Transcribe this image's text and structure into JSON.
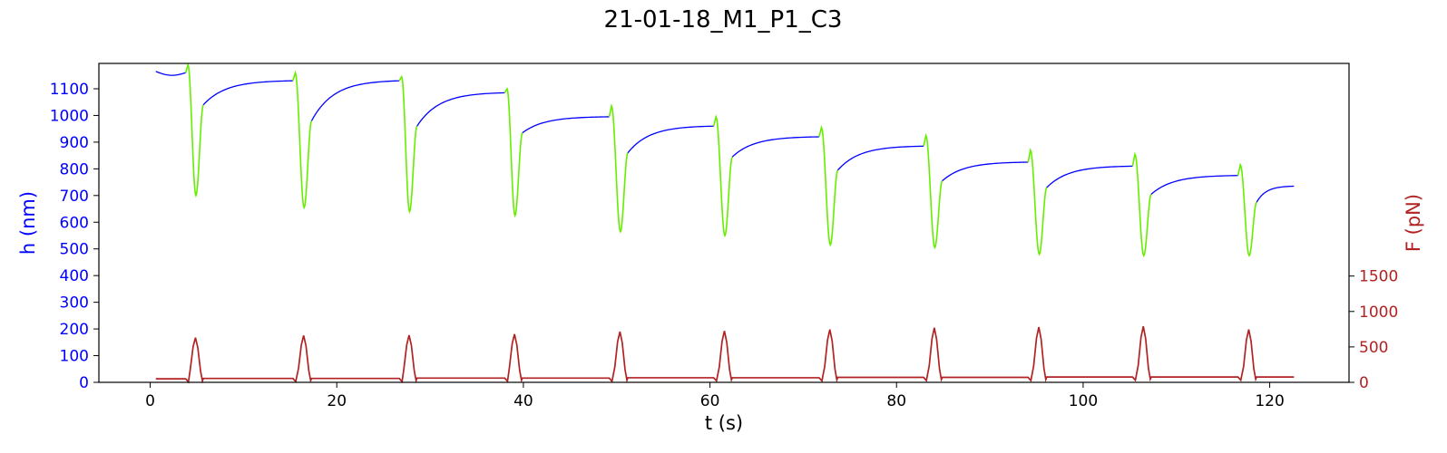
{
  "chart_data": {
    "type": "line",
    "title": "21-01-18_M1_P1_C3",
    "xlabel": "t (s)",
    "ylabel_left": "h (nm)",
    "ylabel_right": "F (pN)",
    "xlim": [
      -5.5,
      128.5
    ],
    "ylim_left": [
      0,
      1195
    ],
    "ylim_right": [
      0,
      4500
    ],
    "x_ticks": [
      0,
      20,
      40,
      60,
      80,
      100,
      120
    ],
    "y_left_ticks": [
      0,
      100,
      200,
      300,
      400,
      500,
      600,
      700,
      800,
      900,
      1000,
      1100
    ],
    "y_right_ticks": [
      0,
      500,
      1000,
      1500
    ],
    "grid": false,
    "colors": {
      "height_relax": "#0000ff",
      "height_indent": "#66ee00",
      "force": "#b22222",
      "left_axis": "#0000ff",
      "right_axis": "#b22222"
    },
    "cycles": [
      {
        "t0": 0.6,
        "tf": 3.8,
        "h_start": 1165,
        "h_end": 1160,
        "h_peak": 1190,
        "h_min": 700,
        "t_min": 4.9,
        "t_end_indent": 5.7,
        "h_end_indent": 1040,
        "f_base": 50,
        "f_peak": 630
      },
      {
        "t0": 5.7,
        "tf": 15.3,
        "h_start": 1040,
        "h_end": 1130,
        "h_peak": 1160,
        "h_min": 655,
        "t_min": 16.5,
        "t_end_indent": 17.3,
        "h_end_indent": 980,
        "f_base": 55,
        "f_peak": 660
      },
      {
        "t0": 17.3,
        "tf": 26.7,
        "h_start": 980,
        "h_end": 1130,
        "h_peak": 1145,
        "h_min": 640,
        "t_min": 27.8,
        "t_end_indent": 28.6,
        "h_end_indent": 960,
        "f_base": 55,
        "f_peak": 665
      },
      {
        "t0": 28.6,
        "tf": 38.0,
        "h_start": 960,
        "h_end": 1085,
        "h_peak": 1100,
        "h_min": 625,
        "t_min": 39.1,
        "t_end_indent": 39.9,
        "h_end_indent": 935,
        "f_base": 60,
        "f_peak": 680
      },
      {
        "t0": 39.9,
        "tf": 49.2,
        "h_start": 935,
        "h_end": 995,
        "h_peak": 1035,
        "h_min": 565,
        "t_min": 50.4,
        "t_end_indent": 51.2,
        "h_end_indent": 860,
        "f_base": 60,
        "f_peak": 715
      },
      {
        "t0": 51.2,
        "tf": 60.4,
        "h_start": 860,
        "h_end": 960,
        "h_peak": 995,
        "h_min": 550,
        "t_min": 61.6,
        "t_end_indent": 62.4,
        "h_end_indent": 845,
        "f_base": 65,
        "f_peak": 725
      },
      {
        "t0": 62.4,
        "tf": 71.7,
        "h_start": 845,
        "h_end": 920,
        "h_peak": 955,
        "h_min": 515,
        "t_min": 72.9,
        "t_end_indent": 73.7,
        "h_end_indent": 795,
        "f_base": 65,
        "f_peak": 745
      },
      {
        "t0": 73.7,
        "tf": 82.9,
        "h_start": 795,
        "h_end": 885,
        "h_peak": 925,
        "h_min": 505,
        "t_min": 84.1,
        "t_end_indent": 84.9,
        "h_end_indent": 755,
        "f_base": 70,
        "f_peak": 770
      },
      {
        "t0": 84.9,
        "tf": 94.1,
        "h_start": 755,
        "h_end": 825,
        "h_peak": 870,
        "h_min": 480,
        "t_min": 95.3,
        "t_end_indent": 96.1,
        "h_end_indent": 730,
        "f_base": 70,
        "f_peak": 780
      },
      {
        "t0": 96.1,
        "tf": 105.3,
        "h_start": 730,
        "h_end": 810,
        "h_peak": 855,
        "h_min": 475,
        "t_min": 106.5,
        "t_end_indent": 107.3,
        "h_end_indent": 705,
        "f_base": 75,
        "f_peak": 790
      },
      {
        "t0": 107.3,
        "tf": 116.6,
        "h_start": 705,
        "h_end": 775,
        "h_peak": 815,
        "h_min": 475,
        "t_min": 117.8,
        "t_end_indent": 118.6,
        "h_end_indent": 675,
        "f_base": 75,
        "f_peak": 745
      },
      {
        "t0": 118.6,
        "tf": 122.6,
        "h_start": 675,
        "h_end": 735,
        "h_peak": null,
        "h_min": null,
        "t_min": null,
        "t_end_indent": null,
        "h_end_indent": null,
        "f_base": 75,
        "f_peak": null
      }
    ]
  }
}
